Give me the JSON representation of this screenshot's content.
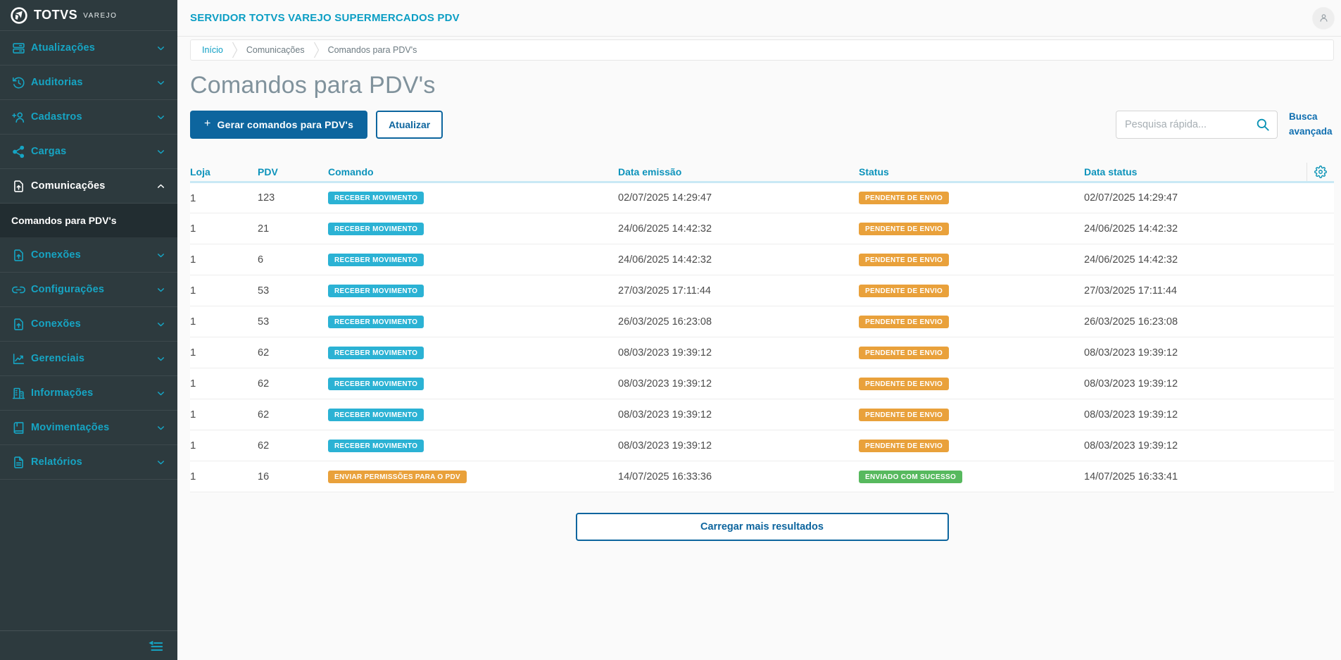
{
  "colors": {
    "badge_info": "#2bb2d4",
    "badge_warning": "#e9a13b",
    "badge_success": "#57b95e",
    "accent_teal": "#16a5c4",
    "primary_blue": "#0d659e"
  },
  "sidebar": {
    "logo": {
      "brand": "TOTVS",
      "product": "VAREJO"
    },
    "items": [
      {
        "type": "group",
        "label": "Atualizações",
        "icon": "server",
        "chevron": "down",
        "active": false
      },
      {
        "type": "group",
        "label": "Auditorias",
        "icon": "history",
        "chevron": "down",
        "active": false
      },
      {
        "type": "group",
        "label": "Cadastros",
        "icon": "user-plus",
        "chevron": "down",
        "active": false
      },
      {
        "type": "group",
        "label": "Cargas",
        "icon": "share",
        "chevron": "down",
        "active": false
      },
      {
        "type": "group",
        "label": "Comunicações",
        "icon": "file-upload",
        "chevron": "up",
        "active": true
      },
      {
        "type": "sub",
        "label": "Comandos para PDV's",
        "active": true
      },
      {
        "type": "group",
        "label": "Conexões",
        "icon": "file-upload",
        "chevron": "down",
        "active": false
      },
      {
        "type": "group",
        "label": "Configurações",
        "icon": "link",
        "chevron": "down",
        "active": false
      },
      {
        "type": "group",
        "label": "Conexões",
        "icon": "file-upload",
        "chevron": "down",
        "active": false
      },
      {
        "type": "group",
        "label": "Gerenciais",
        "icon": "chart",
        "chevron": "down",
        "active": false
      },
      {
        "type": "group",
        "label": "Informações",
        "icon": "building",
        "chevron": "down",
        "active": false
      },
      {
        "type": "group",
        "label": "Movimentações",
        "icon": "book",
        "chevron": "down",
        "active": false
      },
      {
        "type": "group",
        "label": "Relatórios",
        "icon": "file-text",
        "chevron": "down",
        "active": false
      }
    ]
  },
  "header": {
    "title": "SERVIDOR TOTVS VAREJO SUPERMERCADOS PDV"
  },
  "breadcrumb": [
    "Início",
    "Comunicações",
    "Comandos para PDV's"
  ],
  "page": {
    "title": "Comandos para PDV's"
  },
  "toolbar": {
    "generate_button_plus": "+",
    "generate_button": "Gerar comandos para PDV's",
    "refresh_button": "Atualizar",
    "search_placeholder": "Pesquisa rápida...",
    "advanced_search": "Busca avançada"
  },
  "table": {
    "columns": [
      "Loja",
      "PDV",
      "Comando",
      "Data emissão",
      "Status",
      "Data status"
    ],
    "rows": [
      {
        "loja": "1",
        "pdv": "123",
        "comando": {
          "label": "RECEBER MOVIMENTO",
          "variant": "info"
        },
        "data_emissao": "02/07/2025 14:29:47",
        "status": {
          "label": "PENDENTE DE ENVIO",
          "variant": "warning"
        },
        "data_status": "02/07/2025 14:29:47"
      },
      {
        "loja": "1",
        "pdv": "21",
        "comando": {
          "label": "RECEBER MOVIMENTO",
          "variant": "info"
        },
        "data_emissao": "24/06/2025 14:42:32",
        "status": {
          "label": "PENDENTE DE ENVIO",
          "variant": "warning"
        },
        "data_status": "24/06/2025 14:42:32"
      },
      {
        "loja": "1",
        "pdv": "6",
        "comando": {
          "label": "RECEBER MOVIMENTO",
          "variant": "info"
        },
        "data_emissao": "24/06/2025 14:42:32",
        "status": {
          "label": "PENDENTE DE ENVIO",
          "variant": "warning"
        },
        "data_status": "24/06/2025 14:42:32"
      },
      {
        "loja": "1",
        "pdv": "53",
        "comando": {
          "label": "RECEBER MOVIMENTO",
          "variant": "info"
        },
        "data_emissao": "27/03/2025 17:11:44",
        "status": {
          "label": "PENDENTE DE ENVIO",
          "variant": "warning"
        },
        "data_status": "27/03/2025 17:11:44"
      },
      {
        "loja": "1",
        "pdv": "53",
        "comando": {
          "label": "RECEBER MOVIMENTO",
          "variant": "info"
        },
        "data_emissao": "26/03/2025 16:23:08",
        "status": {
          "label": "PENDENTE DE ENVIO",
          "variant": "warning"
        },
        "data_status": "26/03/2025 16:23:08"
      },
      {
        "loja": "1",
        "pdv": "62",
        "comando": {
          "label": "RECEBER MOVIMENTO",
          "variant": "info"
        },
        "data_emissao": "08/03/2023 19:39:12",
        "status": {
          "label": "PENDENTE DE ENVIO",
          "variant": "warning"
        },
        "data_status": "08/03/2023 19:39:12"
      },
      {
        "loja": "1",
        "pdv": "62",
        "comando": {
          "label": "RECEBER MOVIMENTO",
          "variant": "info"
        },
        "data_emissao": "08/03/2023 19:39:12",
        "status": {
          "label": "PENDENTE DE ENVIO",
          "variant": "warning"
        },
        "data_status": "08/03/2023 19:39:12"
      },
      {
        "loja": "1",
        "pdv": "62",
        "comando": {
          "label": "RECEBER MOVIMENTO",
          "variant": "info"
        },
        "data_emissao": "08/03/2023 19:39:12",
        "status": {
          "label": "PENDENTE DE ENVIO",
          "variant": "warning"
        },
        "data_status": "08/03/2023 19:39:12"
      },
      {
        "loja": "1",
        "pdv": "62",
        "comando": {
          "label": "RECEBER MOVIMENTO",
          "variant": "info"
        },
        "data_emissao": "08/03/2023 19:39:12",
        "status": {
          "label": "PENDENTE DE ENVIO",
          "variant": "warning"
        },
        "data_status": "08/03/2023 19:39:12"
      },
      {
        "loja": "1",
        "pdv": "16",
        "comando": {
          "label": "ENVIAR PERMISSÕES PARA O PDV",
          "variant": "warning"
        },
        "data_emissao": "14/07/2025 16:33:36",
        "status": {
          "label": "ENVIADO COM SUCESSO",
          "variant": "success"
        },
        "data_status": "14/07/2025 16:33:41"
      }
    ],
    "load_more": "Carregar mais resultados"
  }
}
